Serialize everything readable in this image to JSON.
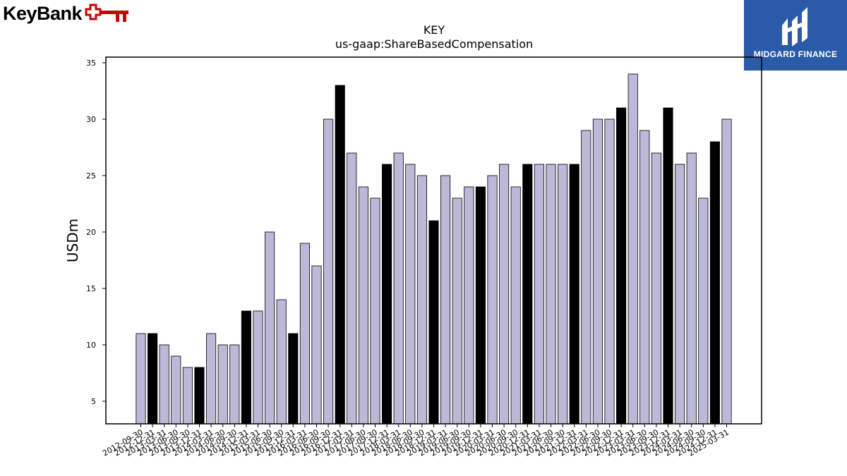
{
  "brand": {
    "left_logo_text": "KeyBank",
    "right_logo_text": "MIDGARD FINANCE",
    "key_icon_color": "#cc0000",
    "right_logo_bg": "#2b5aa8"
  },
  "chart_data": {
    "type": "bar",
    "title": "KEY",
    "subtitle": "us-gaap:ShareBasedCompensation",
    "ylabel": "USDm",
    "xlabel": "",
    "ylim": [
      3,
      35.5
    ],
    "yticks": [
      5,
      10,
      15,
      20,
      25,
      30,
      35
    ],
    "grid": false,
    "colors": {
      "quarter": "#bcb8d8",
      "fiscal_year_end": "#000000"
    },
    "categories": [
      "2012-09-30",
      "2012-12-31",
      "2013-03-31",
      "2013-06-30",
      "2013-09-30",
      "2013-12-31",
      "2014-03-31",
      "2014-06-30",
      "2014-09-30",
      "2014-12-31",
      "2015-03-31",
      "2015-06-30",
      "2015-09-30",
      "2015-12-31",
      "2016-03-31",
      "2016-06-30",
      "2016-09-30",
      "2016-12-31",
      "2017-03-31",
      "2017-06-30",
      "2017-09-30",
      "2017-12-31",
      "2018-03-31",
      "2018-06-30",
      "2018-09-30",
      "2018-12-31",
      "2019-03-31",
      "2019-06-30",
      "2019-09-30",
      "2019-12-31",
      "2020-03-31",
      "2020-06-30",
      "2020-09-30",
      "2020-12-31",
      "2021-03-31",
      "2021-06-30",
      "2021-09-30",
      "2021-12-31",
      "2022-03-31",
      "2022-06-30",
      "2022-09-30",
      "2022-12-31",
      "2023-03-31",
      "2023-06-30",
      "2023-09-30",
      "2023-12-31",
      "2024-03-31",
      "2024-06-30",
      "2024-09-30",
      "2024-12-31",
      "2025-03-31"
    ],
    "values": [
      11,
      11,
      10,
      9,
      8,
      8,
      11,
      10,
      10,
      13,
      13,
      20,
      14,
      11,
      19,
      17,
      30,
      33,
      27,
      24,
      23,
      26,
      27,
      26,
      25,
      21,
      25,
      23,
      24,
      24,
      25,
      26,
      24,
      26,
      26,
      26,
      26,
      26,
      29,
      30,
      30,
      31,
      34,
      29,
      27,
      31,
      26,
      27,
      23,
      28,
      30
    ],
    "highlight": [
      false,
      true,
      false,
      false,
      false,
      true,
      false,
      false,
      false,
      true,
      false,
      false,
      false,
      true,
      false,
      false,
      false,
      true,
      false,
      false,
      false,
      true,
      false,
      false,
      false,
      true,
      false,
      false,
      false,
      true,
      false,
      false,
      false,
      true,
      false,
      false,
      false,
      true,
      false,
      false,
      false,
      true,
      false,
      false,
      false,
      true,
      false,
      false,
      false,
      true,
      false
    ]
  }
}
